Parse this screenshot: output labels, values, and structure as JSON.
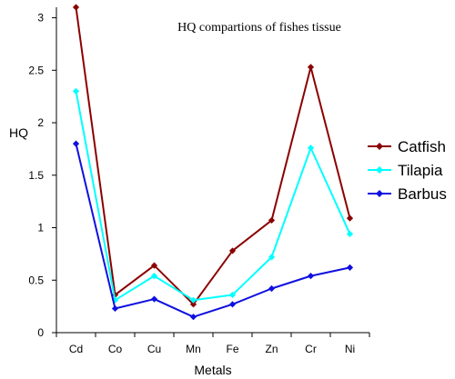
{
  "chart_data": {
    "type": "line",
    "title": "HQ compartions of fishes tissue",
    "xlabel": "Metals",
    "ylabel": "HQ",
    "categories": [
      "Cd",
      "Co",
      "Cu",
      "Mn",
      "Fe",
      "Zn",
      "Cr",
      "Ni"
    ],
    "ylim": [
      0,
      3.1
    ],
    "yticks": [
      "0",
      "0.5",
      "1",
      "1.5",
      "2",
      "2.5",
      "3"
    ],
    "ytick_values": [
      0,
      0.5,
      1,
      1.5,
      2,
      2.5,
      3
    ],
    "grid": false,
    "legend_position": "right",
    "series": [
      {
        "name": "Catfish",
        "color": "#8B0000",
        "marker": "diamond",
        "values": [
          3.1,
          0.36,
          0.64,
          0.27,
          0.78,
          1.07,
          2.53,
          1.09
        ]
      },
      {
        "name": "Tilapia",
        "color": "#00FFFF",
        "marker": "diamond",
        "values": [
          2.3,
          0.31,
          0.54,
          0.31,
          0.36,
          0.72,
          1.76,
          0.94
        ]
      },
      {
        "name": "Barbus",
        "color": "#1010E0",
        "marker": "diamond",
        "values": [
          1.8,
          0.23,
          0.32,
          0.15,
          0.27,
          0.42,
          0.54,
          0.62
        ]
      }
    ]
  }
}
